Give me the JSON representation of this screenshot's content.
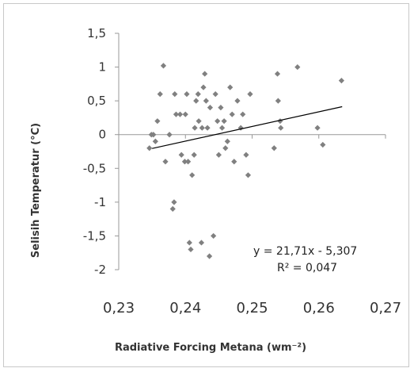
{
  "chart_data": {
    "type": "scatter",
    "title": "",
    "xlabel": "Radiative Forcing Metana (wm⁻²)",
    "ylabel": "Selisih Temperatur (°C)",
    "xlim": [
      0.23,
      0.27
    ],
    "ylim": [
      -2,
      1.5
    ],
    "x_ticks": [
      "0,23",
      "0,24",
      "0,25",
      "0,26",
      "0,27"
    ],
    "y_ticks": [
      "1,5",
      "1",
      "0,5",
      "0",
      "-0,5",
      "-1",
      "-1,5",
      "-2"
    ],
    "grid": false,
    "legend": "none",
    "marker_color": "#808080",
    "trendline": {
      "type": "linear",
      "slope": 21.71,
      "intercept": -5.307,
      "x_range": [
        0.235,
        0.2635
      ],
      "color": "#000000"
    },
    "annotations": {
      "equation": "y = 21,71x - 5,307",
      "r_squared": "R² = 0,047"
    },
    "points": [
      {
        "x": 0.2346,
        "y": -0.2
      },
      {
        "x": 0.2349,
        "y": 0.0
      },
      {
        "x": 0.2352,
        "y": 0.0
      },
      {
        "x": 0.2355,
        "y": -0.1
      },
      {
        "x": 0.2358,
        "y": 0.2
      },
      {
        "x": 0.2362,
        "y": 0.6
      },
      {
        "x": 0.2367,
        "y": 1.02
      },
      {
        "x": 0.237,
        "y": -0.4
      },
      {
        "x": 0.2376,
        "y": 0.0
      },
      {
        "x": 0.2381,
        "y": -1.1
      },
      {
        "x": 0.2383,
        "y": -1.0
      },
      {
        "x": 0.2384,
        "y": 0.6
      },
      {
        "x": 0.2386,
        "y": 0.3
      },
      {
        "x": 0.2392,
        "y": 0.3
      },
      {
        "x": 0.2394,
        "y": -0.3
      },
      {
        "x": 0.2399,
        "y": -0.4
      },
      {
        "x": 0.24,
        "y": 0.3
      },
      {
        "x": 0.2402,
        "y": 0.6
      },
      {
        "x": 0.2404,
        "y": -0.4
      },
      {
        "x": 0.2406,
        "y": -1.6
      },
      {
        "x": 0.2408,
        "y": -1.7
      },
      {
        "x": 0.241,
        "y": -0.6
      },
      {
        "x": 0.2413,
        "y": -0.3
      },
      {
        "x": 0.2414,
        "y": 0.1
      },
      {
        "x": 0.2416,
        "y": 0.5
      },
      {
        "x": 0.2419,
        "y": 0.6
      },
      {
        "x": 0.242,
        "y": 0.2
      },
      {
        "x": 0.2424,
        "y": -1.6
      },
      {
        "x": 0.2425,
        "y": 0.1
      },
      {
        "x": 0.2427,
        "y": 0.7
      },
      {
        "x": 0.2429,
        "y": 0.9
      },
      {
        "x": 0.2431,
        "y": 0.5
      },
      {
        "x": 0.2433,
        "y": 0.1
      },
      {
        "x": 0.2436,
        "y": -1.8
      },
      {
        "x": 0.2437,
        "y": 0.4
      },
      {
        "x": 0.2442,
        "y": -1.5
      },
      {
        "x": 0.2445,
        "y": 0.6
      },
      {
        "x": 0.2448,
        "y": 0.2
      },
      {
        "x": 0.245,
        "y": -0.3
      },
      {
        "x": 0.2453,
        "y": 0.4
      },
      {
        "x": 0.2455,
        "y": 0.1
      },
      {
        "x": 0.2458,
        "y": 0.2
      },
      {
        "x": 0.246,
        "y": -0.2
      },
      {
        "x": 0.2463,
        "y": -0.1
      },
      {
        "x": 0.2467,
        "y": 0.7
      },
      {
        "x": 0.247,
        "y": 0.3
      },
      {
        "x": 0.2473,
        "y": -0.4
      },
      {
        "x": 0.2478,
        "y": 0.5
      },
      {
        "x": 0.2483,
        "y": 0.1
      },
      {
        "x": 0.2486,
        "y": 0.3
      },
      {
        "x": 0.2491,
        "y": -0.3
      },
      {
        "x": 0.2494,
        "y": -0.6
      },
      {
        "x": 0.2497,
        "y": 0.6
      },
      {
        "x": 0.2533,
        "y": -0.2
      },
      {
        "x": 0.2538,
        "y": 0.9
      },
      {
        "x": 0.2539,
        "y": 0.5
      },
      {
        "x": 0.2542,
        "y": 0.2
      },
      {
        "x": 0.2543,
        "y": 0.1
      },
      {
        "x": 0.2568,
        "y": 1.0
      },
      {
        "x": 0.2598,
        "y": 0.1
      },
      {
        "x": 0.2606,
        "y": -0.15
      },
      {
        "x": 0.2634,
        "y": 0.8
      }
    ]
  }
}
